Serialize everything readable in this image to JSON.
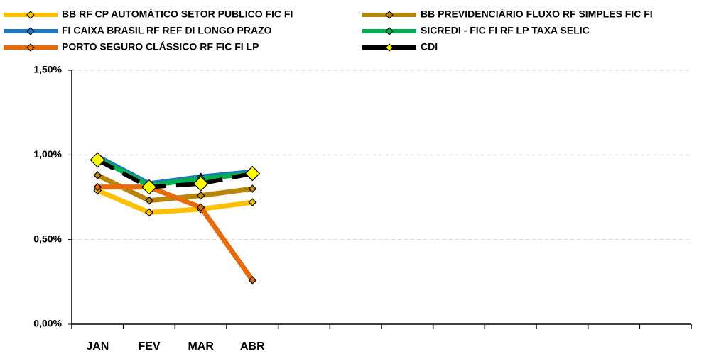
{
  "chart_data": {
    "type": "line",
    "categories": [
      "JAN",
      "FEV",
      "MAR",
      "ABR",
      null,
      null,
      null,
      null,
      null,
      null,
      null,
      null
    ],
    "series": [
      {
        "name": "BB RF CP AUTOMÁTICO SETOR PUBLICO FIC FI",
        "color": "#FFC000",
        "values": [
          0.79,
          0.66,
          0.68,
          0.72,
          null,
          null,
          null,
          null,
          null,
          null,
          null,
          null
        ]
      },
      {
        "name": "BB PREVIDENCIÁRIO FLUXO RF SIMPLES FIC FI",
        "color": "#B8860B",
        "values": [
          0.88,
          0.73,
          0.76,
          0.8,
          null,
          null,
          null,
          null,
          null,
          null,
          null,
          null
        ]
      },
      {
        "name": "FI CAIXA BRASIL RF REF DI LONGO PRAZO",
        "color": "#1F77C4",
        "values": [
          0.99,
          0.83,
          0.87,
          0.9,
          null,
          null,
          null,
          null,
          null,
          null,
          null,
          null
        ]
      },
      {
        "name": "SICREDI - FIC FI RF LP TAXA SELIC",
        "color": "#00B050",
        "values": [
          0.98,
          0.82,
          0.86,
          0.89,
          null,
          null,
          null,
          null,
          null,
          null,
          null,
          null
        ]
      },
      {
        "name": "PORTO SEGURO CLÁSSICO RF FIC FI LP",
        "color": "#E46C0A",
        "values": [
          0.81,
          0.81,
          0.69,
          0.26,
          null,
          null,
          null,
          null,
          null,
          null,
          null,
          null
        ]
      },
      {
        "name": "CDI",
        "color": "#000000",
        "marker_color": "#FFFF00",
        "dashed": true,
        "values": [
          0.97,
          0.81,
          0.83,
          0.89,
          null,
          null,
          null,
          null,
          null,
          null,
          null,
          null
        ]
      }
    ],
    "ylim": [
      0,
      1.5
    ],
    "yticks": [
      {
        "value": 0,
        "label": "0,00%"
      },
      {
        "value": 0.5,
        "label": "0,50%"
      },
      {
        "value": 1.0,
        "label": "1,00%"
      },
      {
        "value": 1.5,
        "label": "1,50%"
      }
    ],
    "grid": true
  }
}
